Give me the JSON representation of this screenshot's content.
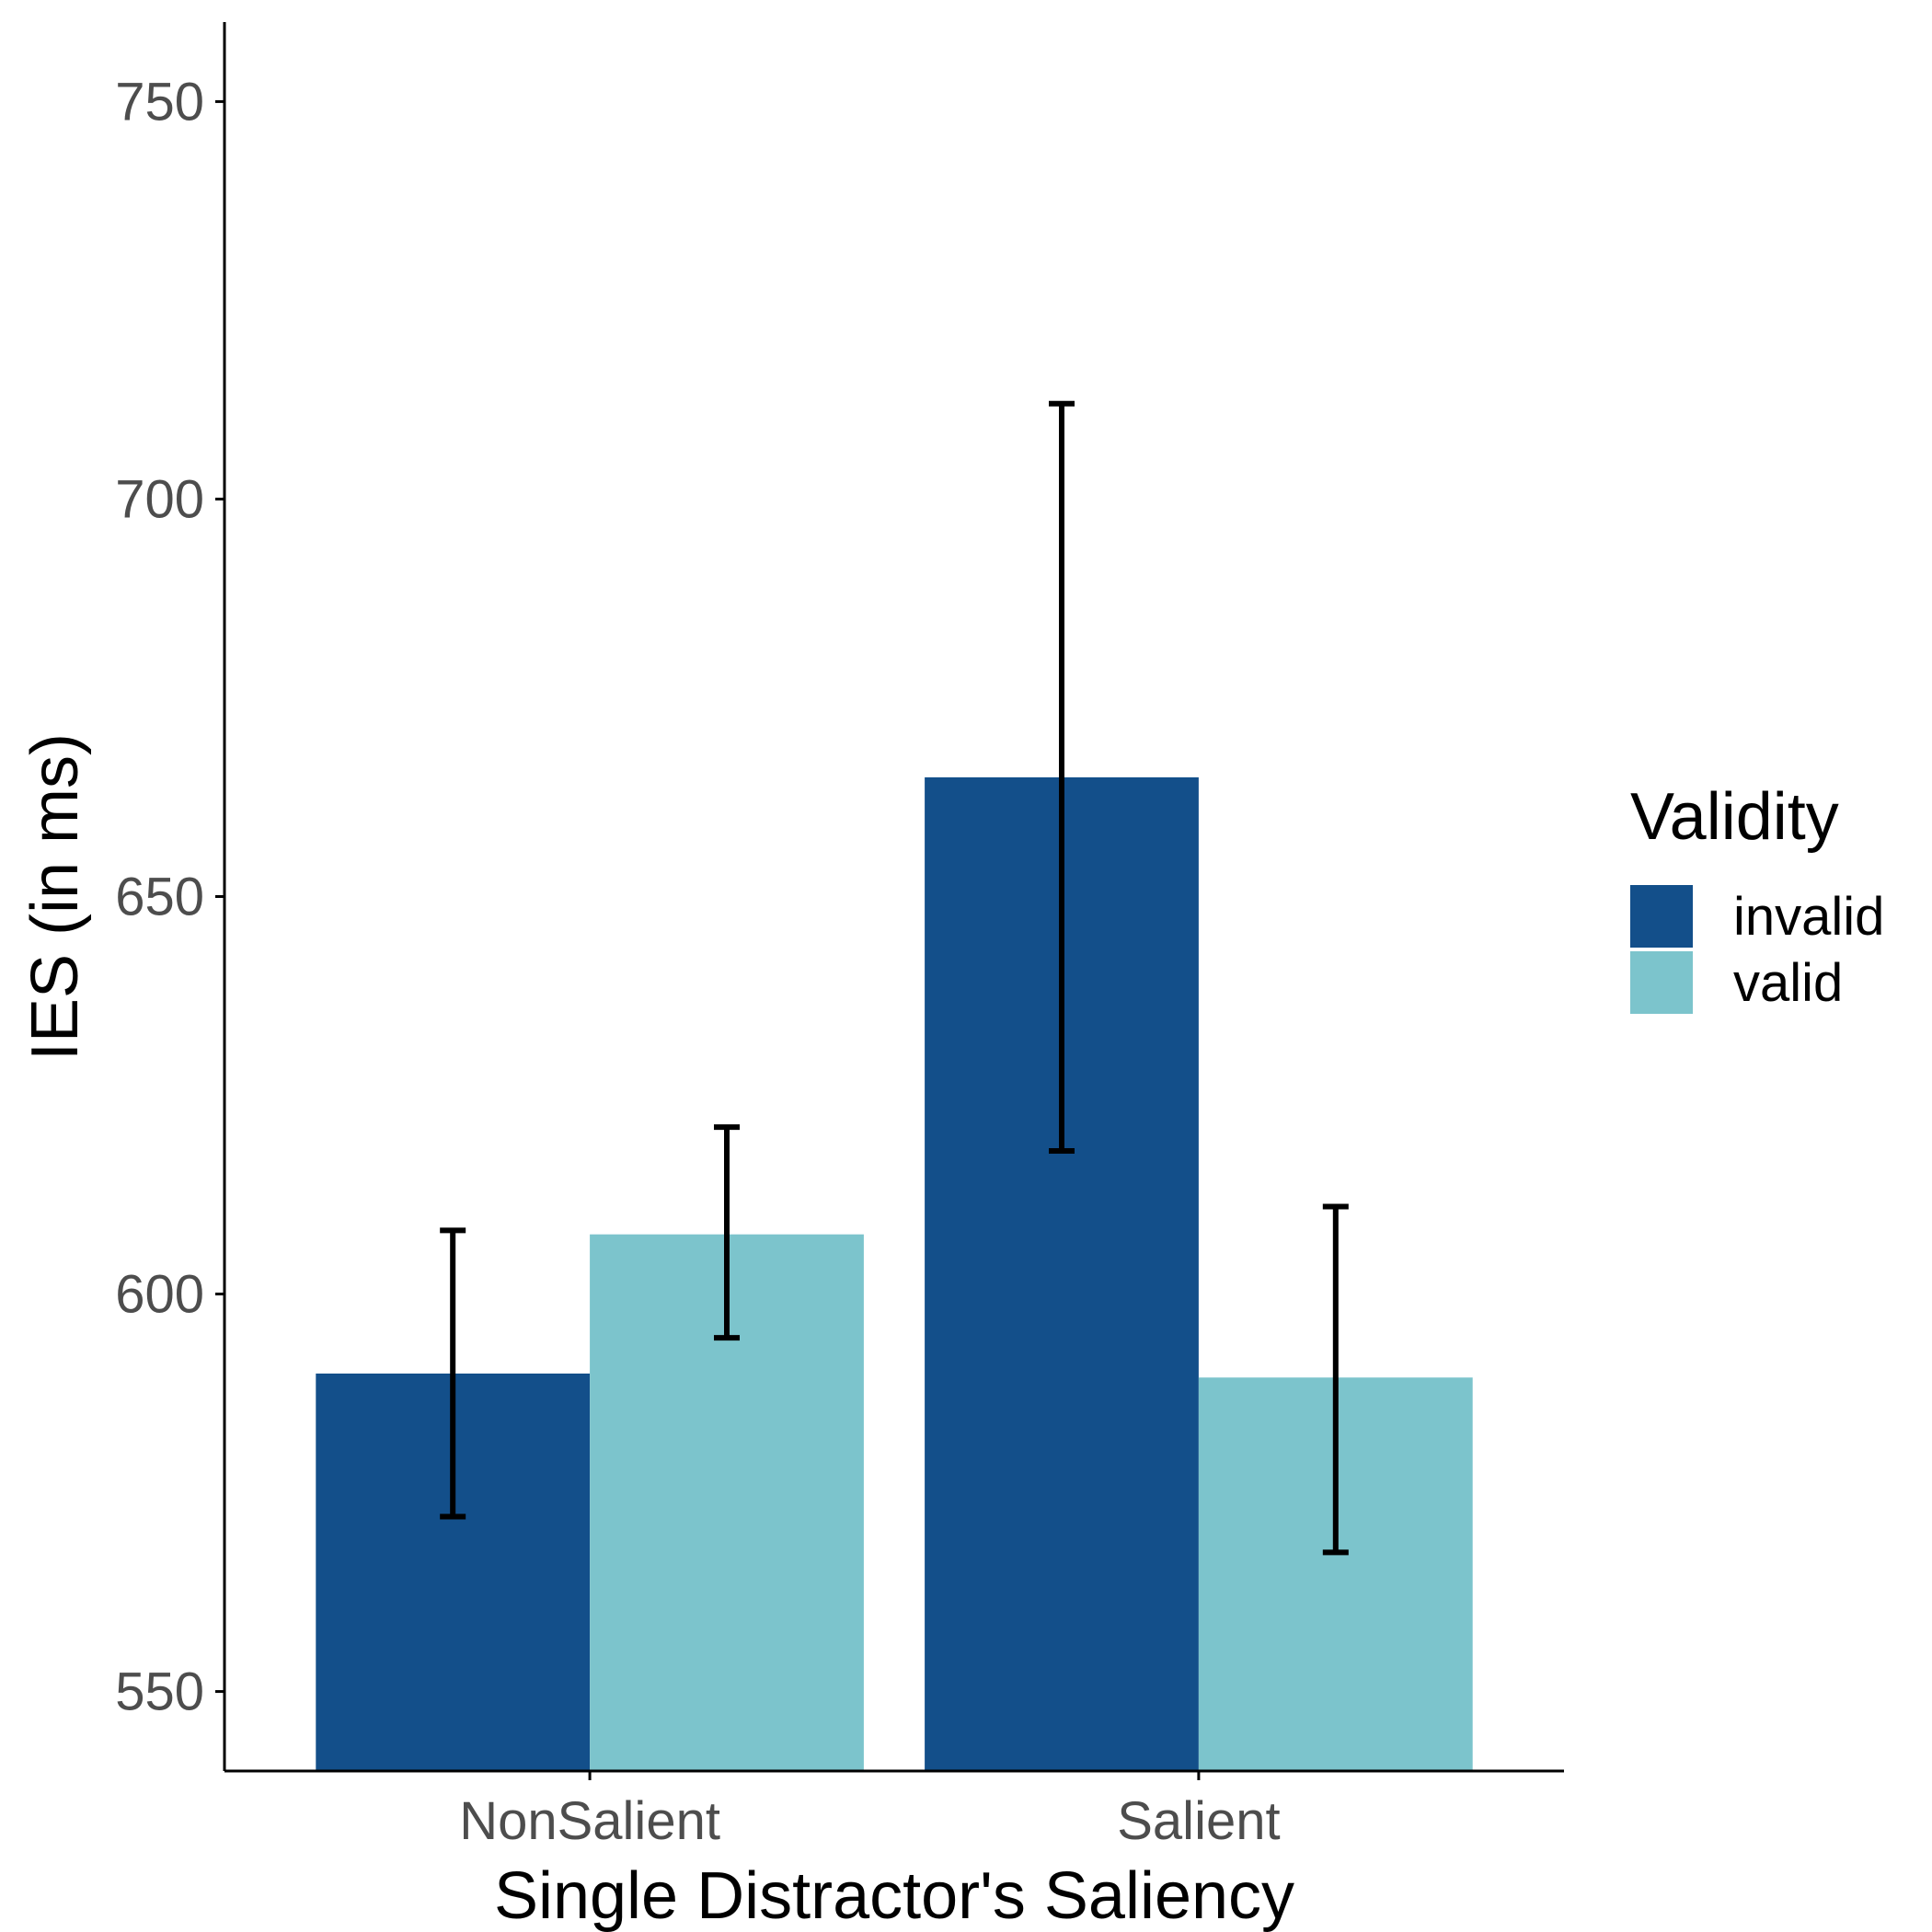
{
  "chart_data": {
    "type": "bar",
    "categories": [
      "NonSalient",
      "Salient"
    ],
    "series": [
      {
        "name": "invalid",
        "color": "#134f8a",
        "values": [
          590,
          665
        ],
        "error_low": [
          572,
          618
        ],
        "error_high": [
          608,
          712
        ]
      },
      {
        "name": "valid",
        "color": "#7cc4cc",
        "values": [
          607.5,
          589.5
        ],
        "error_low": [
          594.5,
          567.5
        ],
        "error_high": [
          621,
          611
        ]
      }
    ],
    "xlabel": "Single Distractor's Saliency",
    "ylabel": "IES (in ms)",
    "ylim": [
      540,
      760
    ],
    "yticks": [
      550,
      600,
      650,
      700,
      750
    ],
    "legend": {
      "title": "Validity",
      "position": "right"
    },
    "grid": false
  }
}
